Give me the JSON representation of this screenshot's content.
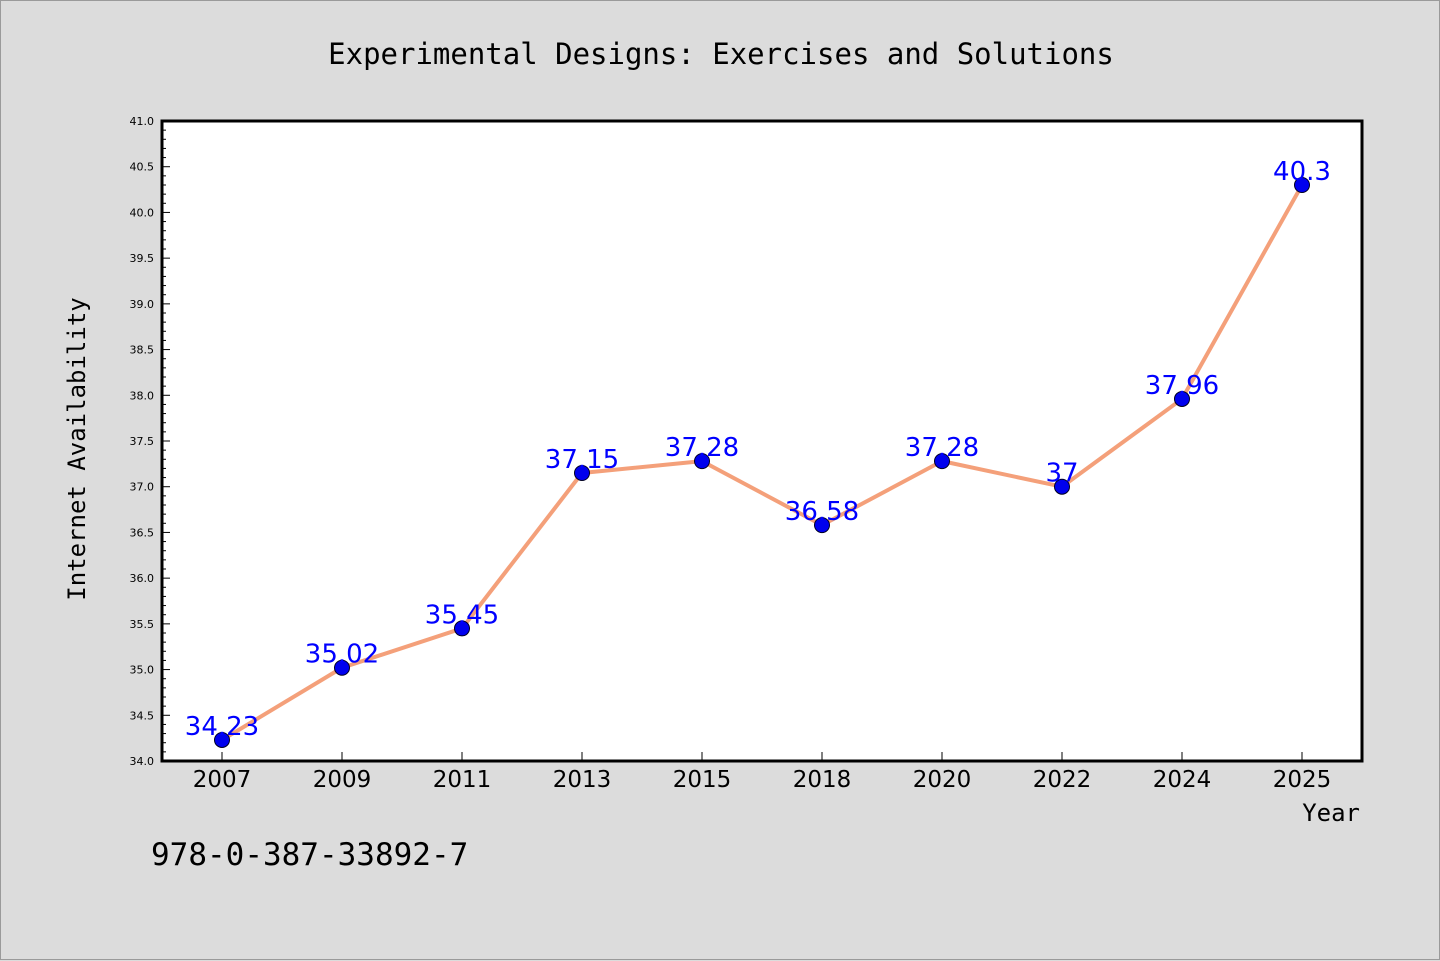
{
  "chart_data": {
    "type": "line",
    "title": "Experimental Designs: Exercises and Solutions",
    "xlabel": "Year",
    "ylabel": "Internet Availability",
    "categories": [
      "2007",
      "2009",
      "2011",
      "2013",
      "2015",
      "2018",
      "2020",
      "2022",
      "2024",
      "2025"
    ],
    "series": [
      {
        "values": [
          34.23,
          35.02,
          35.45,
          37.15,
          37.28,
          36.58,
          37.28,
          37,
          37.96,
          40.3
        ],
        "data_labels": [
          "34.23",
          "35.02",
          "35.45",
          "37.15",
          "37.28",
          "36.58",
          "37.28",
          "37",
          "37.96",
          "40.3"
        ],
        "line_color": "#f4a07a",
        "marker_color": "#0000ee"
      }
    ],
    "ylim": [
      34.0,
      41.0
    ],
    "yticks": [
      "34.0",
      "34.5",
      "35.0",
      "35.5",
      "36.0",
      "36.5",
      "37.0",
      "37.5",
      "38.0",
      "38.5",
      "39.0",
      "39.5",
      "40.0",
      "40.5",
      "41.0"
    ],
    "label_color": "#0000ff",
    "grid": false
  },
  "caption": "978-0-387-33892-7"
}
